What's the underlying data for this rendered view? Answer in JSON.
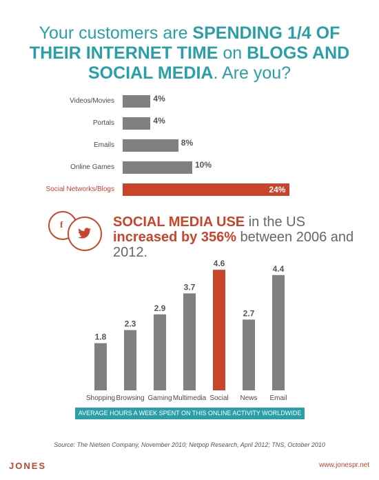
{
  "header": {
    "title_part1": "Your customers are ",
    "title_bold1": "SPENDING 1/4 OF THEIR INTERNET TIME",
    "title_part2": " on ",
    "title_bold2": "BLOGS AND SOCIAL MEDIA",
    "title_part3": ". Are you?"
  },
  "stat": {
    "bold1": "SOCIAL MEDIA USE",
    "text1": " in the US ",
    "bold2": "increased by 356%",
    "text2": " between 2006 and 2012.",
    "fb_glyph": "f"
  },
  "colors": {
    "teal": "#2b9fa8",
    "red": "#c8442a",
    "gray": "#808080"
  },
  "icons": [
    "facebook-icon",
    "twitter-icon"
  ],
  "caption": "AVERAGE HOURS A WEEK SPENT ON THIS ONLINE ACTIVITY WORLDWIDE",
  "source": "Source: The Nielsen Company, November 2010; Netpop Research, April 2012; TNS, October 2010",
  "footer": {
    "logo": "JONES",
    "url": "www.jonespr.net"
  },
  "chart_data": [
    {
      "type": "bar",
      "orientation": "horizontal",
      "categories": [
        "Videos/Movies",
        "Portals",
        "Emails",
        "Online Games",
        "Social Networks/Blogs"
      ],
      "values": [
        4,
        4,
        8,
        10,
        24
      ],
      "value_labels": [
        "4%",
        "4%",
        "8%",
        "10%",
        "24%"
      ],
      "highlight": "Social Networks/Blogs",
      "unit": "%"
    },
    {
      "type": "bar",
      "orientation": "vertical",
      "categories": [
        "Shopping",
        "Browsing",
        "Gaming",
        "Multimedia",
        "Social",
        "News",
        "Email"
      ],
      "values": [
        1.8,
        2.3,
        2.9,
        3.7,
        4.6,
        2.7,
        4.4
      ],
      "value_labels": [
        "1.8",
        "2.3",
        "2.9",
        "3.7",
        "4.6",
        "2.7",
        "4.4"
      ],
      "highlight": "Social"
    }
  ]
}
